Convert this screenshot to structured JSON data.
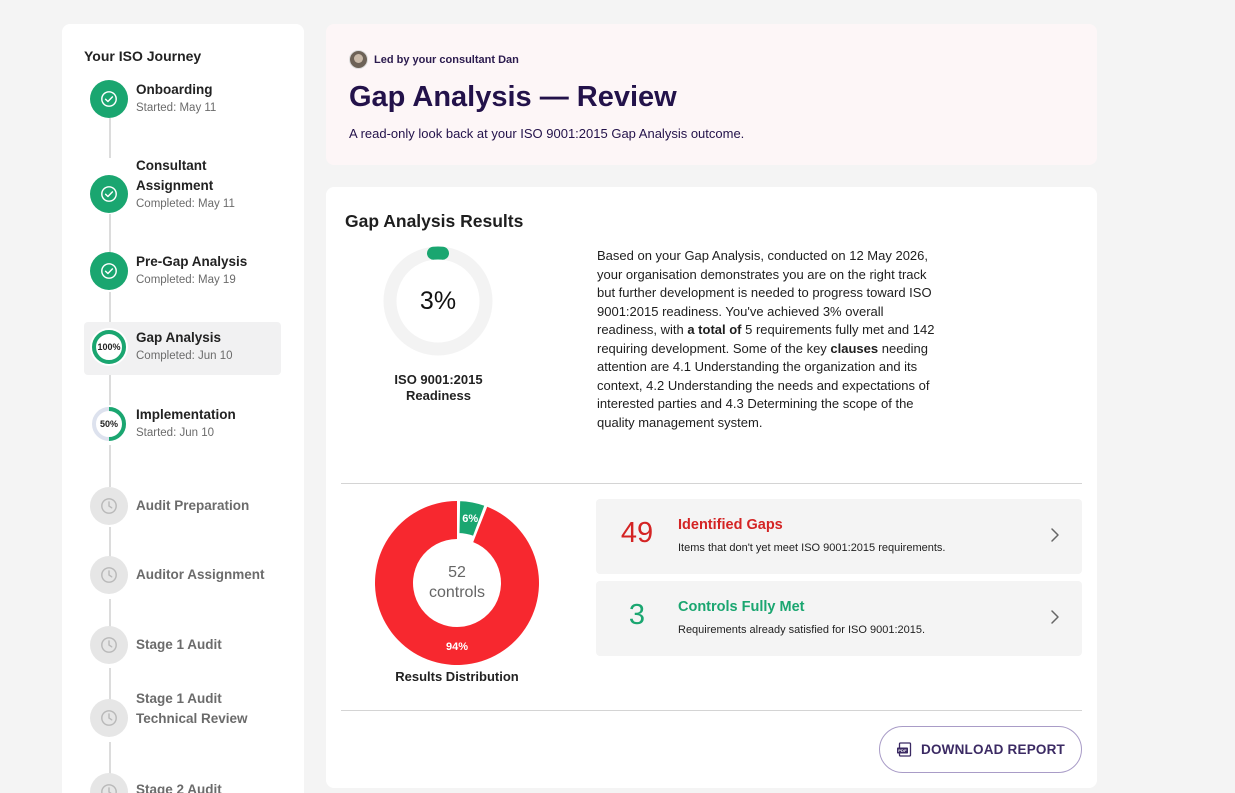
{
  "sidebar": {
    "title": "Your ISO Journey",
    "steps": [
      {
        "label": "Onboarding",
        "sub": "Started: May 11",
        "state": "done"
      },
      {
        "label": "Consultant Assignment",
        "sub": "Completed: May 11",
        "state": "done"
      },
      {
        "label": "Pre-Gap Analysis",
        "sub": "Completed: May 19",
        "state": "done"
      },
      {
        "label": "Gap Analysis",
        "sub": "Completed: Jun 10",
        "state": "active",
        "progress": "100%"
      },
      {
        "label": "Implementation",
        "sub": "Started: Jun 10",
        "state": "in-progress",
        "progress": "50%"
      },
      {
        "label": "Audit Preparation",
        "state": "pending"
      },
      {
        "label": "Auditor Assignment",
        "state": "pending"
      },
      {
        "label": "Stage 1 Audit",
        "state": "pending"
      },
      {
        "label": "Stage 1 Audit Technical Review",
        "state": "pending"
      },
      {
        "label": "Stage 2 Audit",
        "state": "pending"
      }
    ]
  },
  "header": {
    "led_by": "Led by your consultant Dan",
    "title": "Gap Analysis — Review",
    "subtitle": "A read-only look back at your ISO 9001:2015 Gap Analysis outcome."
  },
  "results": {
    "title": "Gap Analysis Results",
    "readiness_value": "3%",
    "readiness_fraction": 0.03,
    "readiness_label": "ISO 9001:2015 Readiness",
    "summary": {
      "p1": "Based on your Gap Analysis, conducted on 12 May 2026, your organisation demonstrates you are on the right track but further development is needed to progress toward ISO 9001:2015 readiness. You've achieved 3% overall readiness, with ",
      "b1": "a total of",
      "p2": " 5 requirements fully met and 142 requiring development. Some of the key ",
      "b2": "clauses",
      "p3": " needing attention are 4.1 Understanding the organization and its context, 4.2 Understanding the needs and expectations of interested parties and 4.3 Determining the scope of the quality management system."
    },
    "distribution": {
      "center_count": "52",
      "center_unit": "controls",
      "label": "Results Distribution",
      "met_pct_label": "6%",
      "gap_pct_label": "94%",
      "met_fraction": 0.06,
      "gap_fraction": 0.94,
      "met_color": "#1aa670",
      "gap_color": "#f7282f"
    },
    "gaps": {
      "count": "49",
      "title": "Identified Gaps",
      "desc": "Items that don't yet meet ISO 9001:2015 requirements."
    },
    "met": {
      "count": "3",
      "title": "Controls Fully Met",
      "desc": "Requirements already satisfied for ISO 9001:2015."
    },
    "download_label": "DOWNLOAD REPORT"
  }
}
